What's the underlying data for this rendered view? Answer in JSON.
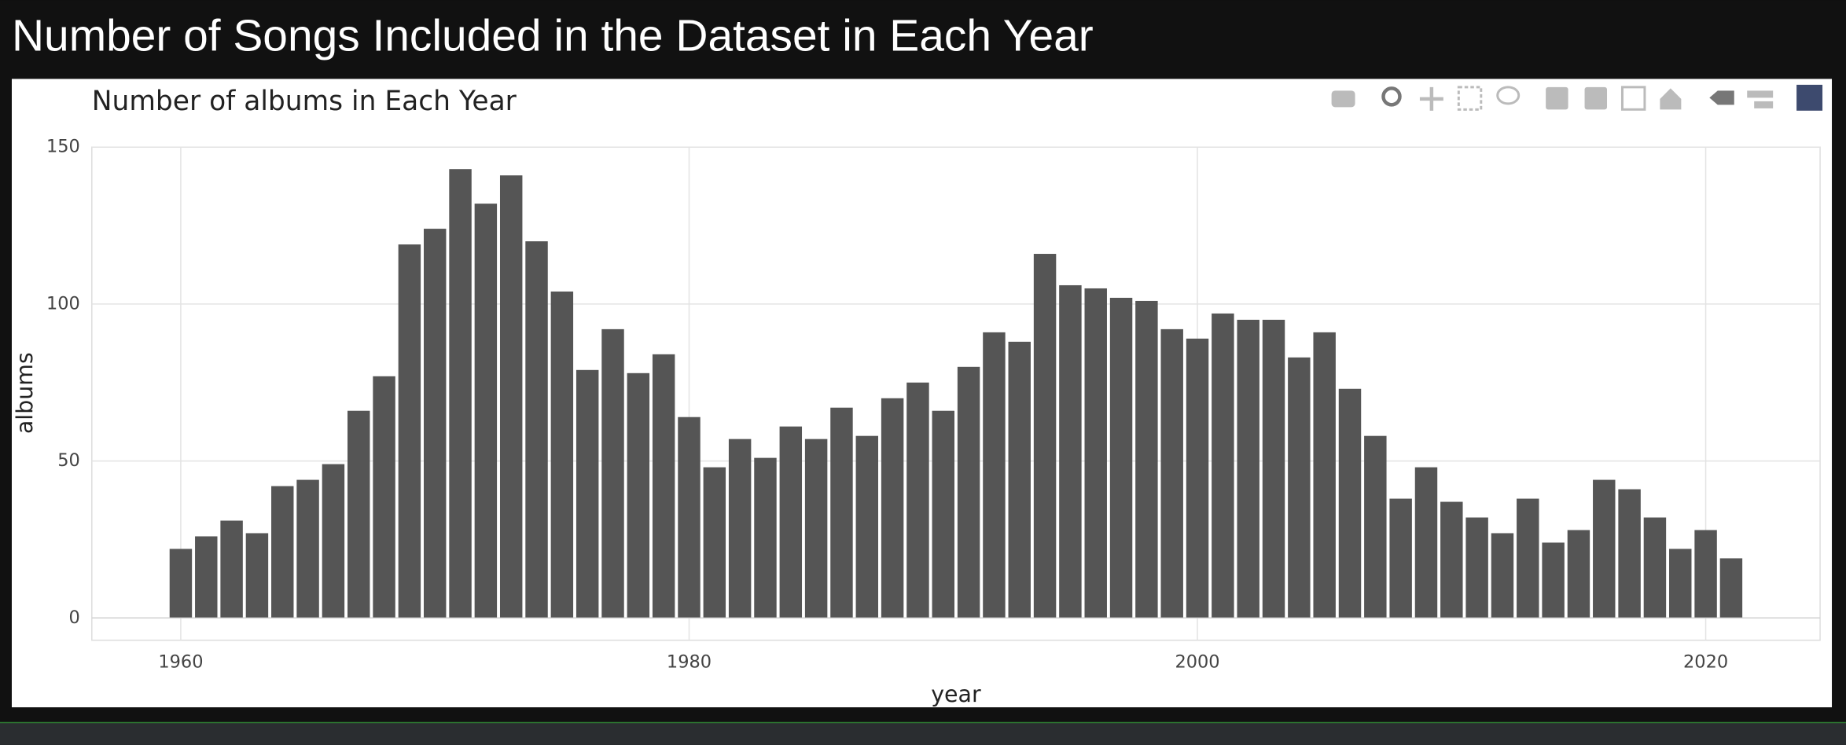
{
  "page_title": "Number of Songs Included in the Dataset in Each Year",
  "chart_data": {
    "type": "bar",
    "title": "Number of albums in Each Year",
    "x_label": "year",
    "y_label": "albums",
    "x": [
      1960,
      1961,
      1962,
      1963,
      1964,
      1965,
      1966,
      1967,
      1968,
      1969,
      1970,
      1971,
      1972,
      1973,
      1974,
      1975,
      1976,
      1977,
      1978,
      1979,
      1980,
      1981,
      1982,
      1983,
      1984,
      1985,
      1986,
      1987,
      1988,
      1989,
      1990,
      1991,
      1992,
      1993,
      1994,
      1995,
      1996,
      1997,
      1998,
      1999,
      2000,
      2001,
      2002,
      2003,
      2004,
      2005,
      2006,
      2007,
      2008,
      2009,
      2010,
      2011,
      2012,
      2013,
      2014,
      2015,
      2016,
      2017,
      2018,
      2019,
      2020,
      2021
    ],
    "values": [
      22,
      26,
      31,
      27,
      42,
      44,
      49,
      66,
      77,
      119,
      124,
      143,
      132,
      141,
      120,
      104,
      79,
      92,
      78,
      84,
      64,
      48,
      57,
      51,
      61,
      57,
      67,
      58,
      70,
      75,
      66,
      80,
      91,
      88,
      116,
      106,
      105,
      102,
      101,
      92,
      89,
      97,
      95,
      95,
      83,
      91,
      73,
      58,
      38,
      48,
      37,
      32,
      27,
      38,
      24,
      28,
      44,
      41,
      32,
      22,
      28,
      19
    ],
    "color": "#555555",
    "xlim": [
      1956.5,
      2024.5
    ],
    "ylim": [
      -7.1,
      150
    ],
    "xticks": [
      1960,
      1980,
      2000,
      2020
    ],
    "yticks": [
      0,
      50,
      100,
      150
    ],
    "grid": true
  }
}
